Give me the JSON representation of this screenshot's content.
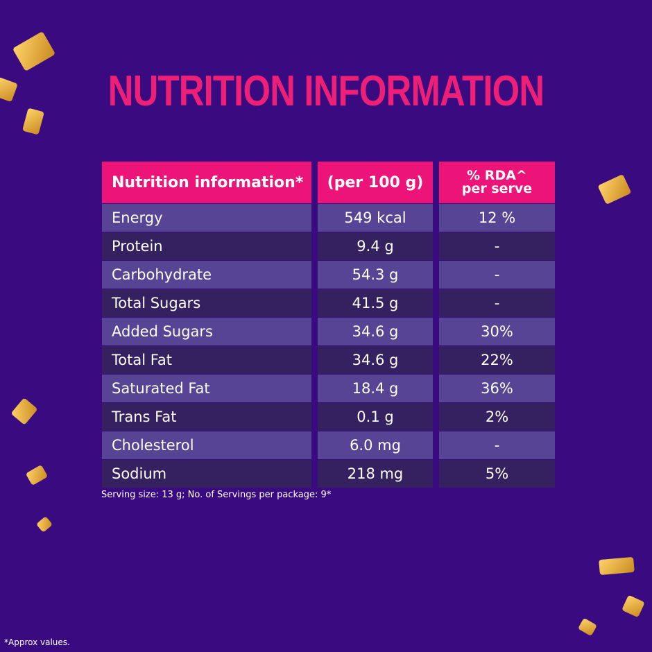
{
  "title": "NUTRITION INFORMATION",
  "table": {
    "headers": [
      "Nutrition information*",
      "(per 100 g)",
      "% RDA^",
      "per serve"
    ],
    "rows": [
      {
        "name": "Energy",
        "per100": "549 kcal",
        "rda": "12 %"
      },
      {
        "name": "Protein",
        "per100": "9.4 g",
        "rda": "-"
      },
      {
        "name": "Carbohydrate",
        "per100": "54.3 g",
        "rda": "-"
      },
      {
        "name": "Total Sugars",
        "per100": "41.5 g",
        "rda": "-"
      },
      {
        "name": "Added Sugars",
        "per100": "34.6 g",
        "rda": "30%"
      },
      {
        "name": "Total Fat",
        "per100": "34.6 g",
        "rda": "22%"
      },
      {
        "name": "Saturated Fat",
        "per100": "18.4 g",
        "rda": "36%"
      },
      {
        "name": "Trans Fat",
        "per100": "0.1 g",
        "rda": "2%"
      },
      {
        "name": "Cholesterol",
        "per100": "6.0 mg",
        "rda": "-"
      },
      {
        "name": "Sodium",
        "per100": "218 mg",
        "rda": "5%"
      }
    ]
  },
  "serving_note": "Serving size: 13 g; No. of Servings per package: 9*",
  "approx_note": "*Approx values.",
  "colors": {
    "background": "#3a0a80",
    "header": "#ec1478",
    "row_light": "#574494",
    "row_dark": "#35215f",
    "title": "#ee1f77"
  }
}
